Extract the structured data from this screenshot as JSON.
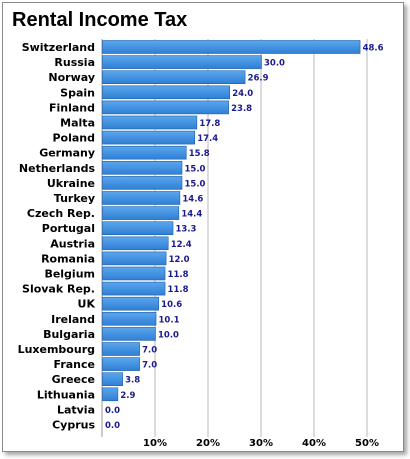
{
  "chart_data": {
    "type": "bar",
    "orientation": "horizontal",
    "title": "Rental Income Tax",
    "categories": [
      "Switzerland",
      "Russia",
      "Norway",
      "Spain",
      "Finland",
      "Malta",
      "Poland",
      "Germany",
      "Netherlands",
      "Ukraine",
      "Turkey",
      "Czech Rep.",
      "Portugal",
      "Austria",
      "Romania",
      "Belgium",
      "Slovak Rep.",
      "UK",
      "Ireland",
      "Bulgaria",
      "Luxembourg",
      "France",
      "Greece",
      "Lithuania",
      "Latvia",
      "Cyprus"
    ],
    "values": [
      48.6,
      30.0,
      26.9,
      24.0,
      23.8,
      17.8,
      17.4,
      15.8,
      15.0,
      15.0,
      14.6,
      14.4,
      13.3,
      12.4,
      12.0,
      11.8,
      11.8,
      10.6,
      10.1,
      10.0,
      7.0,
      7.0,
      3.8,
      2.9,
      0.0,
      0.0
    ],
    "value_labels": [
      "48.6",
      "30.0",
      "26.9",
      "24.0",
      "23.8",
      "17.8",
      "17.4",
      "15.8",
      "15.0",
      "15.0",
      "14.6",
      "14.4",
      "13.3",
      "12.4",
      "12.0",
      "11.8",
      "11.8",
      "10.6",
      "10.1",
      "10.0",
      "7.0",
      "7.0",
      "3.8",
      "2.9",
      "0.0",
      "0.0"
    ],
    "x_ticks": [
      10,
      20,
      30,
      40,
      50
    ],
    "x_tick_labels": [
      "10%",
      "20%",
      "30%",
      "40%",
      "50%"
    ],
    "xlim": [
      0,
      50
    ],
    "grid": "vertical",
    "bar_color": "#3d8fe0"
  }
}
